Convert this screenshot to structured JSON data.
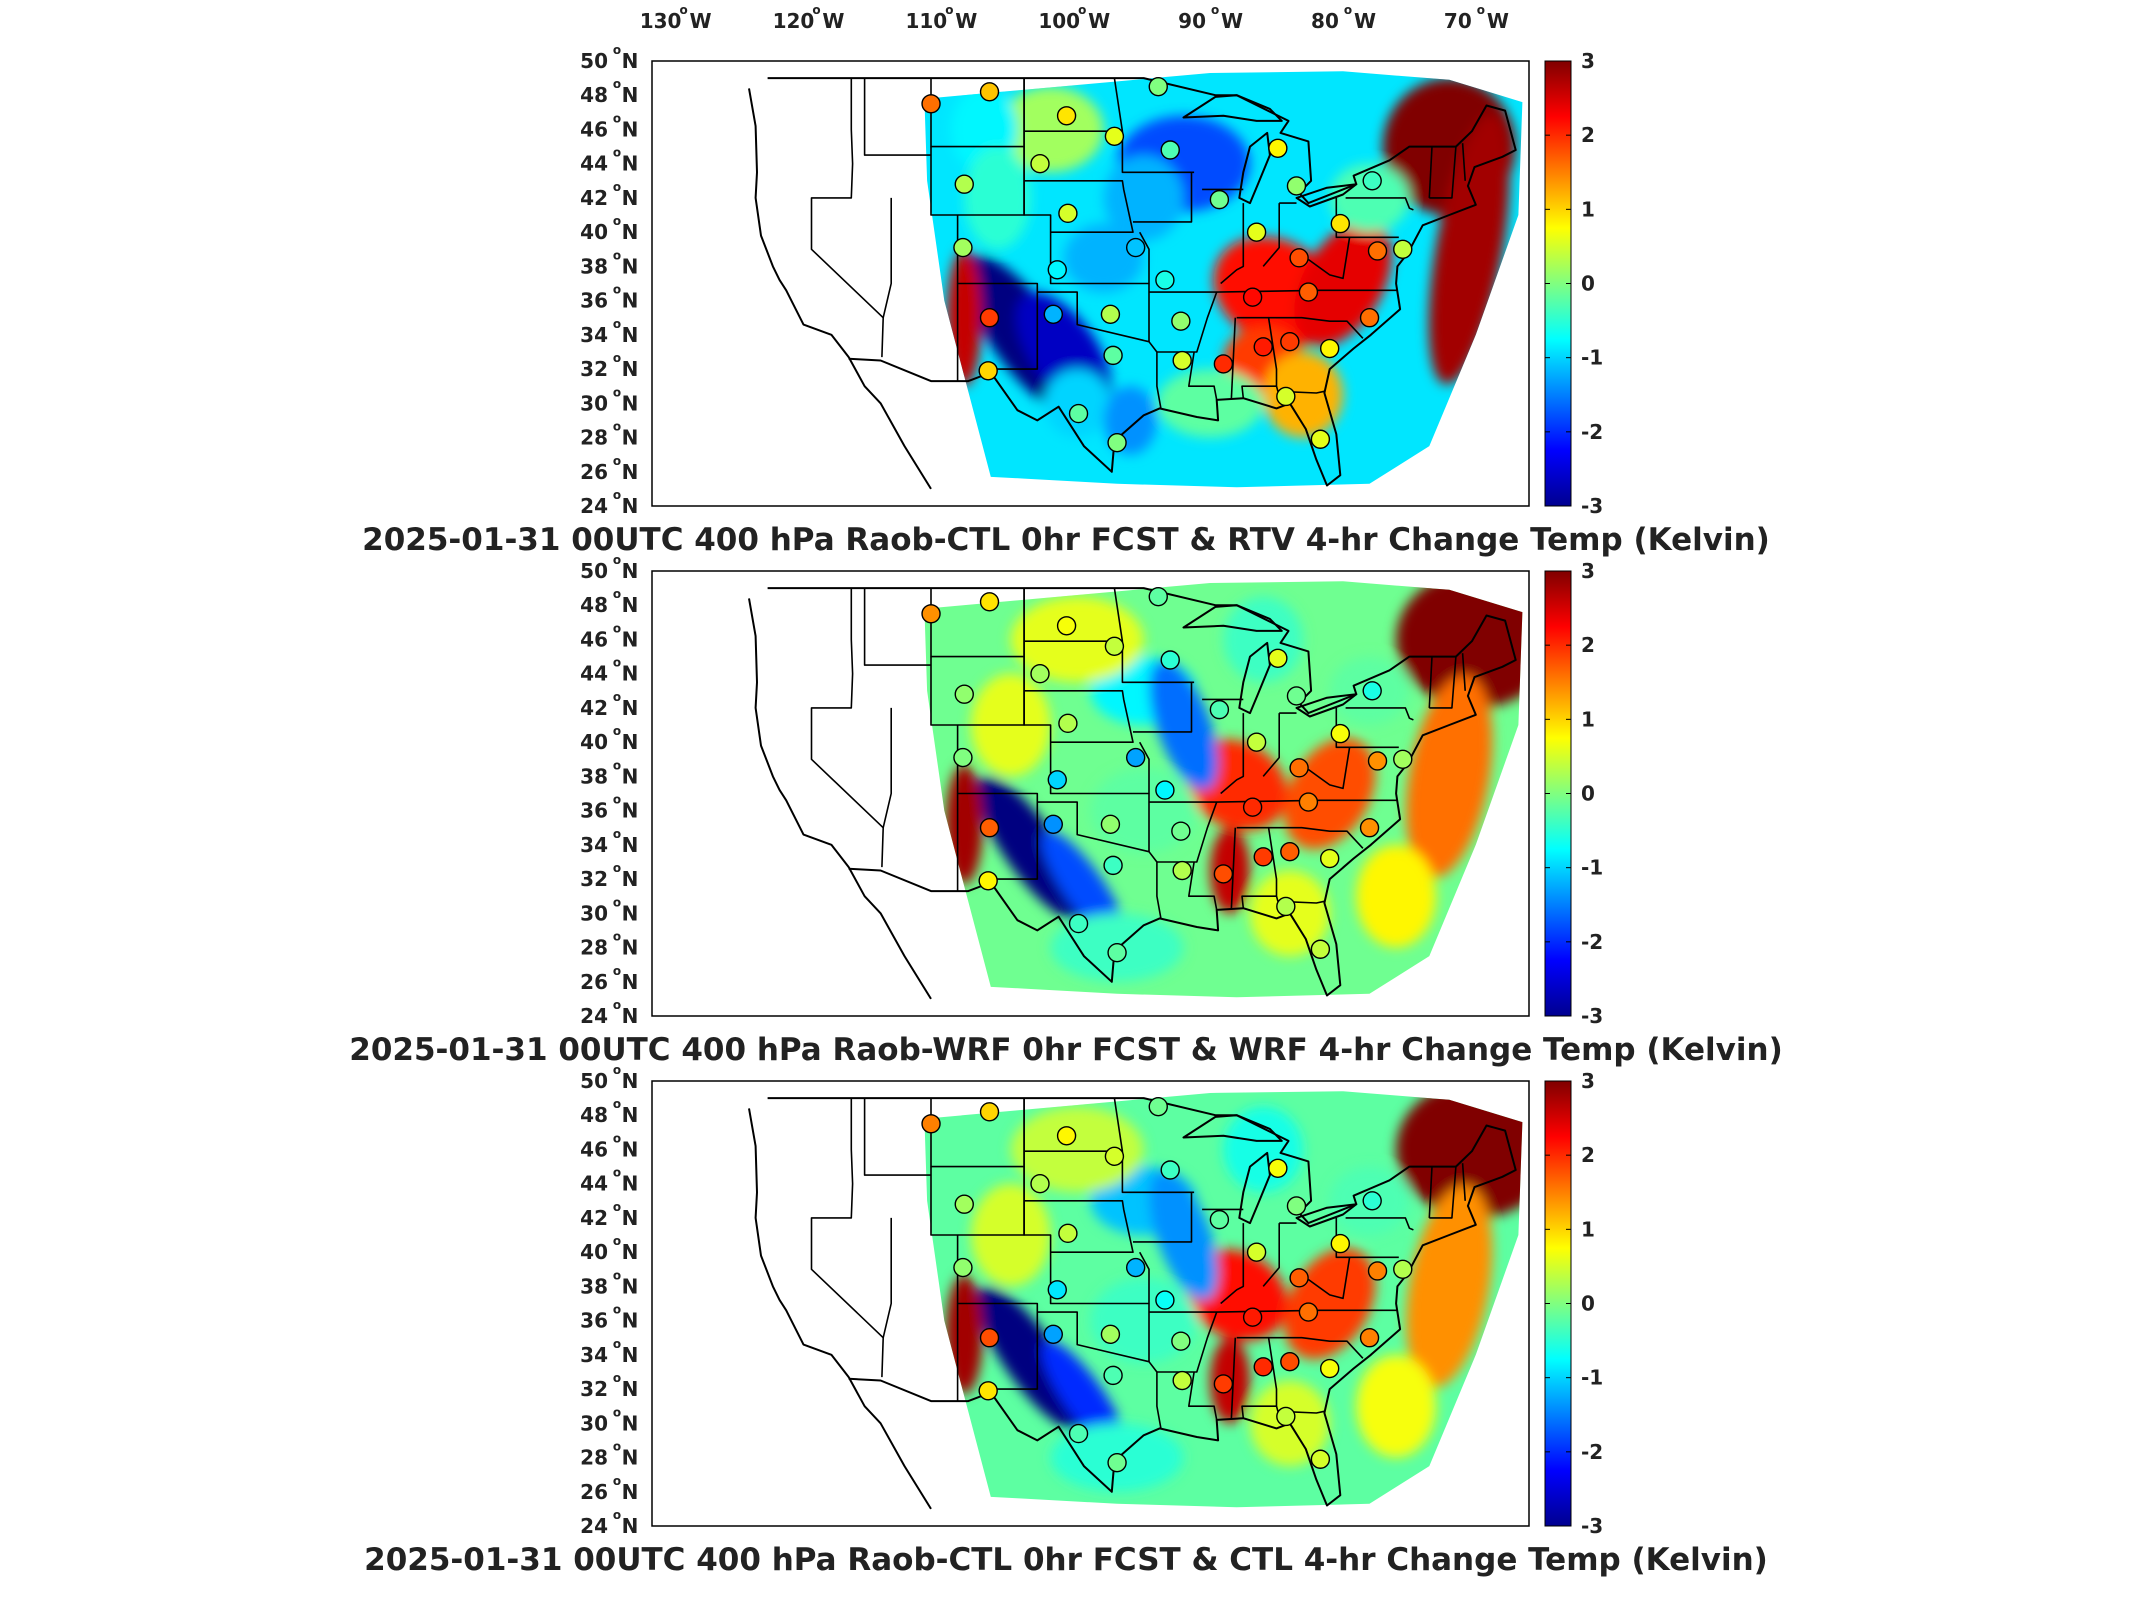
{
  "top_axis": {
    "lon_labels": [
      "130",
      "120",
      "110",
      "100",
      "90",
      "80",
      "70"
    ],
    "suffix": "W"
  },
  "lat_axis": {
    "lat_labels": [
      "50",
      "48",
      "46",
      "44",
      "42",
      "40",
      "38",
      "36",
      "34",
      "32",
      "30",
      "28",
      "26",
      "24"
    ],
    "suffix": "N"
  },
  "colorbar": {
    "ticks": [
      "3",
      "2",
      "1",
      "0",
      "-1",
      "-2",
      "-3"
    ],
    "range": [
      -3,
      3
    ],
    "colormap": "jet"
  },
  "panels": [
    {
      "title": "2025-01-31 00UTC 400 hPa Raob-CTL 0hr FCST & RTV 4-hr Change Temp (Kelvin)",
      "field": "RTV 4-hr Change Temp"
    },
    {
      "title": "2025-01-31 00UTC 400 hPa Raob-WRF 0hr FCST & WRF 4-hr Change Temp (Kelvin)",
      "field": "WRF 4-hr Change Temp"
    },
    {
      "title": "2025-01-31 00UTC 400 hPa Raob-CTL 0hr FCST & CTL 4-hr Change Temp (Kelvin)",
      "field": "CTL 4-hr Change Temp"
    }
  ],
  "stations": [
    {
      "lon": -111.0,
      "lat": 47.5,
      "v": 1.6
    },
    {
      "lon": -106.6,
      "lat": 48.2,
      "v": 1.1
    },
    {
      "lon": -100.8,
      "lat": 46.8,
      "v": 0.9
    },
    {
      "lon": -97.2,
      "lat": 45.6,
      "v": 0.6
    },
    {
      "lon": -102.8,
      "lat": 44.0,
      "v": 0.4
    },
    {
      "lon": -108.5,
      "lat": 42.8,
      "v": 0.3
    },
    {
      "lon": -100.7,
      "lat": 41.1,
      "v": 0.5
    },
    {
      "lon": -93.0,
      "lat": 44.8,
      "v": -0.3
    },
    {
      "lon": -84.9,
      "lat": 44.9,
      "v": 0.8
    },
    {
      "lon": -83.5,
      "lat": 42.7,
      "v": 0.1
    },
    {
      "lon": -77.8,
      "lat": 43.0,
      "v": -0.4
    },
    {
      "lon": -89.3,
      "lat": 41.9,
      "v": -0.1
    },
    {
      "lon": -86.5,
      "lat": 40.0,
      "v": 0.6
    },
    {
      "lon": -83.3,
      "lat": 38.5,
      "v": 1.8
    },
    {
      "lon": -80.2,
      "lat": 40.5,
      "v": 0.9
    },
    {
      "lon": -77.4,
      "lat": 38.9,
      "v": 1.6
    },
    {
      "lon": -108.6,
      "lat": 39.1,
      "v": 0.2
    },
    {
      "lon": -101.5,
      "lat": 37.8,
      "v": -0.8
    },
    {
      "lon": -95.6,
      "lat": 39.1,
      "v": -1.1
    },
    {
      "lon": -93.4,
      "lat": 37.2,
      "v": -0.6
    },
    {
      "lon": -106.6,
      "lat": 35.0,
      "v": 1.9
    },
    {
      "lon": -101.8,
      "lat": 35.2,
      "v": -1.2
    },
    {
      "lon": -97.5,
      "lat": 35.2,
      "v": 0.3
    },
    {
      "lon": -92.2,
      "lat": 34.8,
      "v": 0.1
    },
    {
      "lon": -86.8,
      "lat": 36.2,
      "v": 2.2
    },
    {
      "lon": -82.6,
      "lat": 36.5,
      "v": 1.7
    },
    {
      "lon": -78.0,
      "lat": 35.0,
      "v": 1.6
    },
    {
      "lon": -97.3,
      "lat": 32.8,
      "v": -0.2
    },
    {
      "lon": -92.1,
      "lat": 32.5,
      "v": 0.5
    },
    {
      "lon": -89.0,
      "lat": 32.3,
      "v": 2.0
    },
    {
      "lon": -86.0,
      "lat": 33.3,
      "v": 2.1
    },
    {
      "lon": -84.0,
      "lat": 33.6,
      "v": 1.9
    },
    {
      "lon": -81.0,
      "lat": 33.2,
      "v": 0.8
    },
    {
      "lon": -106.7,
      "lat": 31.9,
      "v": 1.0
    },
    {
      "lon": -97.0,
      "lat": 27.7,
      "v": 0.0
    },
    {
      "lon": -99.9,
      "lat": 29.4,
      "v": -0.2
    },
    {
      "lon": -84.3,
      "lat": 30.4,
      "v": 0.5
    },
    {
      "lon": -81.7,
      "lat": 27.9,
      "v": 0.6
    },
    {
      "lon": -93.9,
      "lat": 48.5,
      "v": 0.0
    },
    {
      "lon": -75.5,
      "lat": 39.0,
      "v": 0.4
    }
  ]
}
